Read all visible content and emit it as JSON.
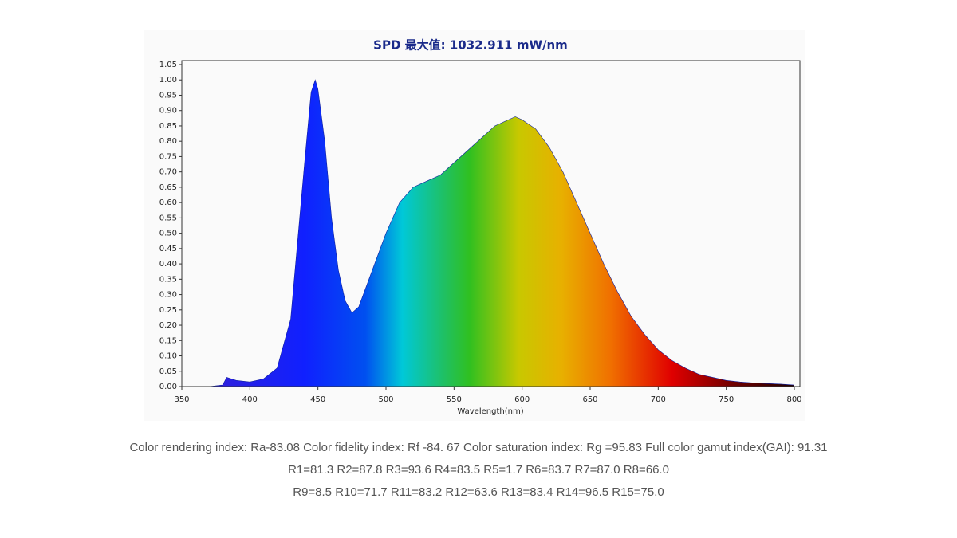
{
  "chart_data": {
    "type": "area",
    "title": "SPD 最大值: 1032.911 mW/nm",
    "x_label": "Wavelength(nm)",
    "x": [
      350,
      370,
      380,
      383,
      390,
      400,
      410,
      420,
      430,
      440,
      445,
      448,
      450,
      455,
      460,
      465,
      470,
      475,
      480,
      490,
      500,
      510,
      520,
      530,
      540,
      550,
      560,
      570,
      580,
      590,
      595,
      600,
      610,
      620,
      630,
      640,
      650,
      660,
      670,
      680,
      690,
      700,
      710,
      720,
      730,
      740,
      750,
      760,
      770,
      780,
      790,
      800
    ],
    "values": [
      0,
      0,
      0.005,
      0.03,
      0.02,
      0.015,
      0.025,
      0.06,
      0.22,
      0.72,
      0.96,
      1.0,
      0.97,
      0.8,
      0.55,
      0.38,
      0.28,
      0.24,
      0.26,
      0.38,
      0.5,
      0.6,
      0.65,
      0.67,
      0.69,
      0.73,
      0.77,
      0.81,
      0.85,
      0.87,
      0.88,
      0.87,
      0.84,
      0.78,
      0.7,
      0.6,
      0.5,
      0.4,
      0.31,
      0.23,
      0.17,
      0.12,
      0.085,
      0.06,
      0.04,
      0.03,
      0.02,
      0.015,
      0.012,
      0.01,
      0.008,
      0.005
    ],
    "xlim": [
      350,
      800
    ],
    "xticks": [
      350,
      400,
      450,
      500,
      550,
      600,
      650,
      700,
      750,
      800
    ],
    "ylim": [
      0,
      1.05
    ],
    "yticks": [
      {
        "value": 0,
        "label": "0.00"
      },
      0.05,
      {
        "value": 0.1,
        "label": "0.10"
      },
      0.15,
      {
        "value": 0.2,
        "label": "0.20"
      },
      0.25,
      {
        "value": 0.3,
        "label": "0.30"
      },
      0.35,
      {
        "value": 0.4,
        "label": "0.40"
      },
      0.45,
      {
        "value": 0.5,
        "label": "0.50"
      },
      0.55,
      {
        "value": 0.6,
        "label": "0.60"
      },
      0.65,
      {
        "value": 0.7,
        "label": "0.70"
      },
      0.75,
      {
        "value": 0.8,
        "label": "0.80"
      },
      0.85,
      {
        "value": 0.9,
        "label": "0.90"
      },
      0.95,
      {
        "value": 1,
        "label": "1.00"
      },
      1.05
    ]
  },
  "caption": [
    "Color rendering index: Ra-83.08 Color fidelity index: Rf -84. 67 Color saturation index: Rg =95.83 Full color gamut index(GAI): 91.31",
    "R1=81.3 R2=87.8 R3=93.6 R4=83.5 R5=1.7 R6=83.7 R7=87.0 R8=66.0",
    "R9=8.5 R10=71.7 R11=83.2 R12=63.6 R13=83.4 R14=96.5 R15=75.0"
  ]
}
